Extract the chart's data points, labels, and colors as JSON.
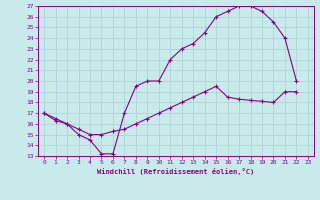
{
  "xlabel": "Windchill (Refroidissement éolien,°C)",
  "bg_color": "#c8eaea",
  "grid_color": "#a8d0d0",
  "line_color": "#880088",
  "xlim": [
    -0.5,
    23.5
  ],
  "ylim": [
    13,
    27
  ],
  "xticks": [
    0,
    1,
    2,
    3,
    4,
    5,
    6,
    7,
    8,
    9,
    10,
    11,
    12,
    13,
    14,
    15,
    16,
    17,
    18,
    19,
    20,
    21,
    22,
    23
  ],
  "yticks": [
    13,
    14,
    15,
    16,
    17,
    18,
    19,
    20,
    21,
    22,
    23,
    24,
    25,
    26,
    27
  ],
  "line1_x": [
    0,
    1,
    2,
    3,
    4,
    5,
    6,
    7,
    8,
    9,
    10,
    11,
    12,
    13,
    14,
    15,
    16,
    17,
    18,
    19,
    20,
    21,
    22
  ],
  "line1_y": [
    17.0,
    16.5,
    16.0,
    15.0,
    14.5,
    13.2,
    13.2,
    17.0,
    19.5,
    20.0,
    20.0,
    22.0,
    23.0,
    23.5,
    24.5,
    26.0,
    26.5,
    27.0,
    27.0,
    26.5,
    25.5,
    24.0,
    20.0
  ],
  "line2_x": [
    0,
    1,
    2,
    3,
    4,
    5,
    6,
    7,
    8,
    9,
    10,
    11,
    12,
    13,
    14,
    15,
    16,
    17,
    18,
    19,
    20,
    21,
    22
  ],
  "line2_y": [
    17.0,
    16.3,
    16.0,
    15.5,
    15.0,
    15.0,
    15.3,
    15.5,
    16.0,
    16.5,
    17.0,
    17.5,
    18.0,
    18.5,
    19.0,
    19.5,
    18.5,
    18.3,
    18.2,
    18.1,
    18.0,
    19.0,
    19.0
  ]
}
